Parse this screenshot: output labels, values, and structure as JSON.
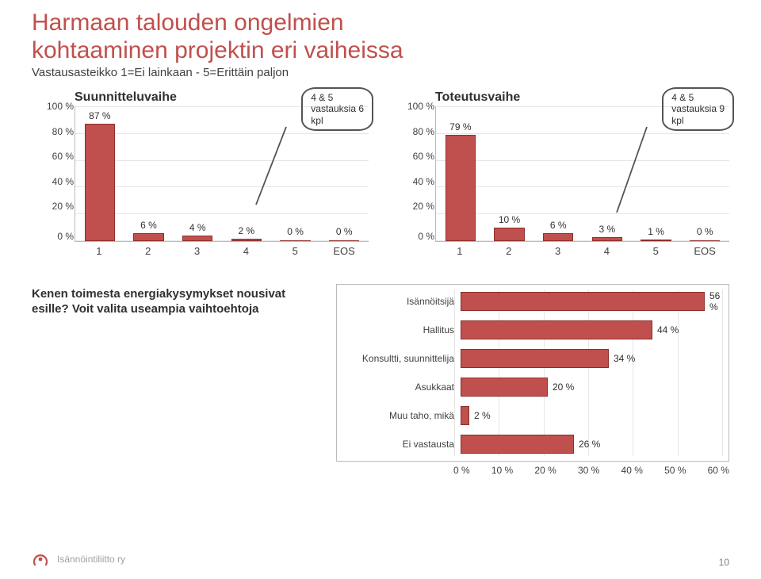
{
  "title_color": "#c0504d",
  "title_line1": "Harmaan talouden ongelmien",
  "title_line2": "kohtaaminen projektin eri vaiheissa",
  "subtitle": "Vastausasteikko 1=Ei lainkaan - 5=Erittäin paljon",
  "bar_border": "#4a6a8a",
  "bar_fill": "#c0504d",
  "bar_outline": "#8b2f2c",
  "y_ticks": [
    "100 %",
    "80 %",
    "60 %",
    "40 %",
    "20 %",
    "0 %"
  ],
  "y_max": 100,
  "chart1": {
    "title": "Suunnitteluvaihe",
    "categories": [
      "1",
      "2",
      "3",
      "4",
      "5",
      "EOS"
    ],
    "values": [
      87,
      6,
      4,
      2,
      0,
      0
    ],
    "value_labels": [
      "87 %",
      "6 %",
      "4 %",
      "2 %",
      "0 %",
      "0 %"
    ],
    "annotation": "4 & 5\nvastauksia 6\nkpl"
  },
  "chart2": {
    "title": "Toteutusvaihe",
    "categories": [
      "1",
      "2",
      "3",
      "4",
      "5",
      "EOS"
    ],
    "values": [
      79,
      10,
      6,
      3,
      1,
      0
    ],
    "value_labels": [
      "79 %",
      "10 %",
      "6 %",
      "3 %",
      "1 %",
      "0 %"
    ],
    "annotation": "4 & 5\nvastauksia 9\nkpl"
  },
  "question_text": "Kenen toimesta energiakysymykset nousivat esille? Voit valita useampia vaihtoehtoja",
  "hbar": {
    "x_ticks": [
      "0 %",
      "10 %",
      "20 %",
      "30 %",
      "40 %",
      "50 %",
      "60 %"
    ],
    "x_max": 60,
    "bars": [
      {
        "label": "Isännöitsijä",
        "value": 56,
        "text": "56 %"
      },
      {
        "label": "Hallitus",
        "value": 44,
        "text": "44 %"
      },
      {
        "label": "Konsultti, suunnittelija",
        "value": 34,
        "text": "34 %"
      },
      {
        "label": "Asukkaat",
        "value": 20,
        "text": "20 %"
      },
      {
        "label": "Muu taho, mikä",
        "value": 2,
        "text": "2 %"
      },
      {
        "label": "Ei vastausta",
        "value": 26,
        "text": "26 %"
      }
    ]
  },
  "footer_text": "Isännöintiliitto ry",
  "page_number": "10",
  "logo_color": "#c0504d"
}
